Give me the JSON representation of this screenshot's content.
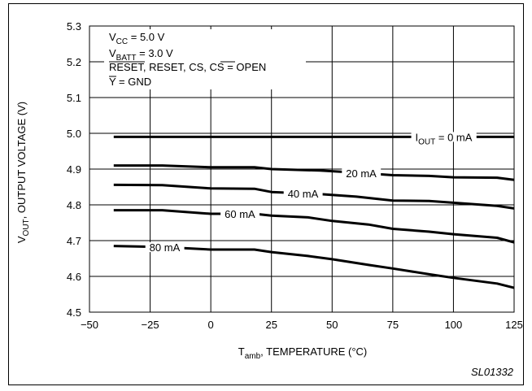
{
  "figure_id": "SL01332",
  "chart_data": {
    "type": "line",
    "xlabel": "T_amb, TEMPERATURE (°C)",
    "ylabel": "V_OUT, OUTPUT VOLTAGE (V)",
    "xlim": [
      -50,
      125
    ],
    "ylim": [
      4.5,
      5.3
    ],
    "xticks": [
      -50,
      -25,
      0,
      25,
      50,
      75,
      100,
      125
    ],
    "xtick_labels": [
      "−50",
      "−25",
      "0",
      "25",
      "50",
      "75",
      "100",
      "125"
    ],
    "yticks": [
      4.5,
      4.6,
      4.7,
      4.8,
      4.9,
      5.0,
      5.1,
      5.2,
      5.3
    ],
    "ytick_labels": [
      "4.5",
      "4.6",
      "4.7",
      "4.8",
      "4.9",
      "5.0",
      "5.1",
      "5.2",
      "5.3"
    ],
    "grid": true,
    "conditions": [
      "V_CC = 5.0 V",
      "V_BATT = 3.0 V",
      "RESET, RESET, CS, CS = OPEN",
      "Y = GND"
    ],
    "series": [
      {
        "name": "I_OUT = 0 mA",
        "x": [
          -40,
          -20,
          0,
          20,
          40,
          60,
          80,
          100,
          125
        ],
        "y": [
          4.99,
          4.99,
          4.99,
          4.99,
          4.99,
          4.99,
          4.99,
          4.99,
          4.99
        ]
      },
      {
        "name": "20 mA",
        "x": [
          -40,
          -20,
          0,
          18,
          25,
          45,
          60,
          75,
          90,
          100,
          118,
          125
        ],
        "y": [
          4.91,
          4.91,
          4.905,
          4.905,
          4.9,
          4.896,
          4.89,
          4.883,
          4.881,
          4.877,
          4.876,
          4.87
        ]
      },
      {
        "name": "40 mA",
        "x": [
          -40,
          -20,
          0,
          18,
          25,
          45,
          60,
          75,
          90,
          100,
          118,
          125
        ],
        "y": [
          4.856,
          4.855,
          4.846,
          4.845,
          4.836,
          4.83,
          4.823,
          4.812,
          4.811,
          4.806,
          4.797,
          4.79
        ]
      },
      {
        "name": "60 mA",
        "x": [
          -40,
          -20,
          0,
          18,
          25,
          40,
          50,
          65,
          75,
          90,
          100,
          118,
          125
        ],
        "y": [
          4.785,
          4.785,
          4.775,
          4.775,
          4.77,
          4.765,
          4.755,
          4.745,
          4.733,
          4.725,
          4.718,
          4.708,
          4.695
        ]
      },
      {
        "name": "80 mA",
        "x": [
          -40,
          -20,
          0,
          18,
          25,
          40,
          50,
          65,
          75,
          90,
          100,
          118,
          125
        ],
        "y": [
          4.685,
          4.682,
          4.675,
          4.675,
          4.668,
          4.657,
          4.648,
          4.632,
          4.622,
          4.606,
          4.596,
          4.58,
          4.568
        ]
      }
    ]
  }
}
